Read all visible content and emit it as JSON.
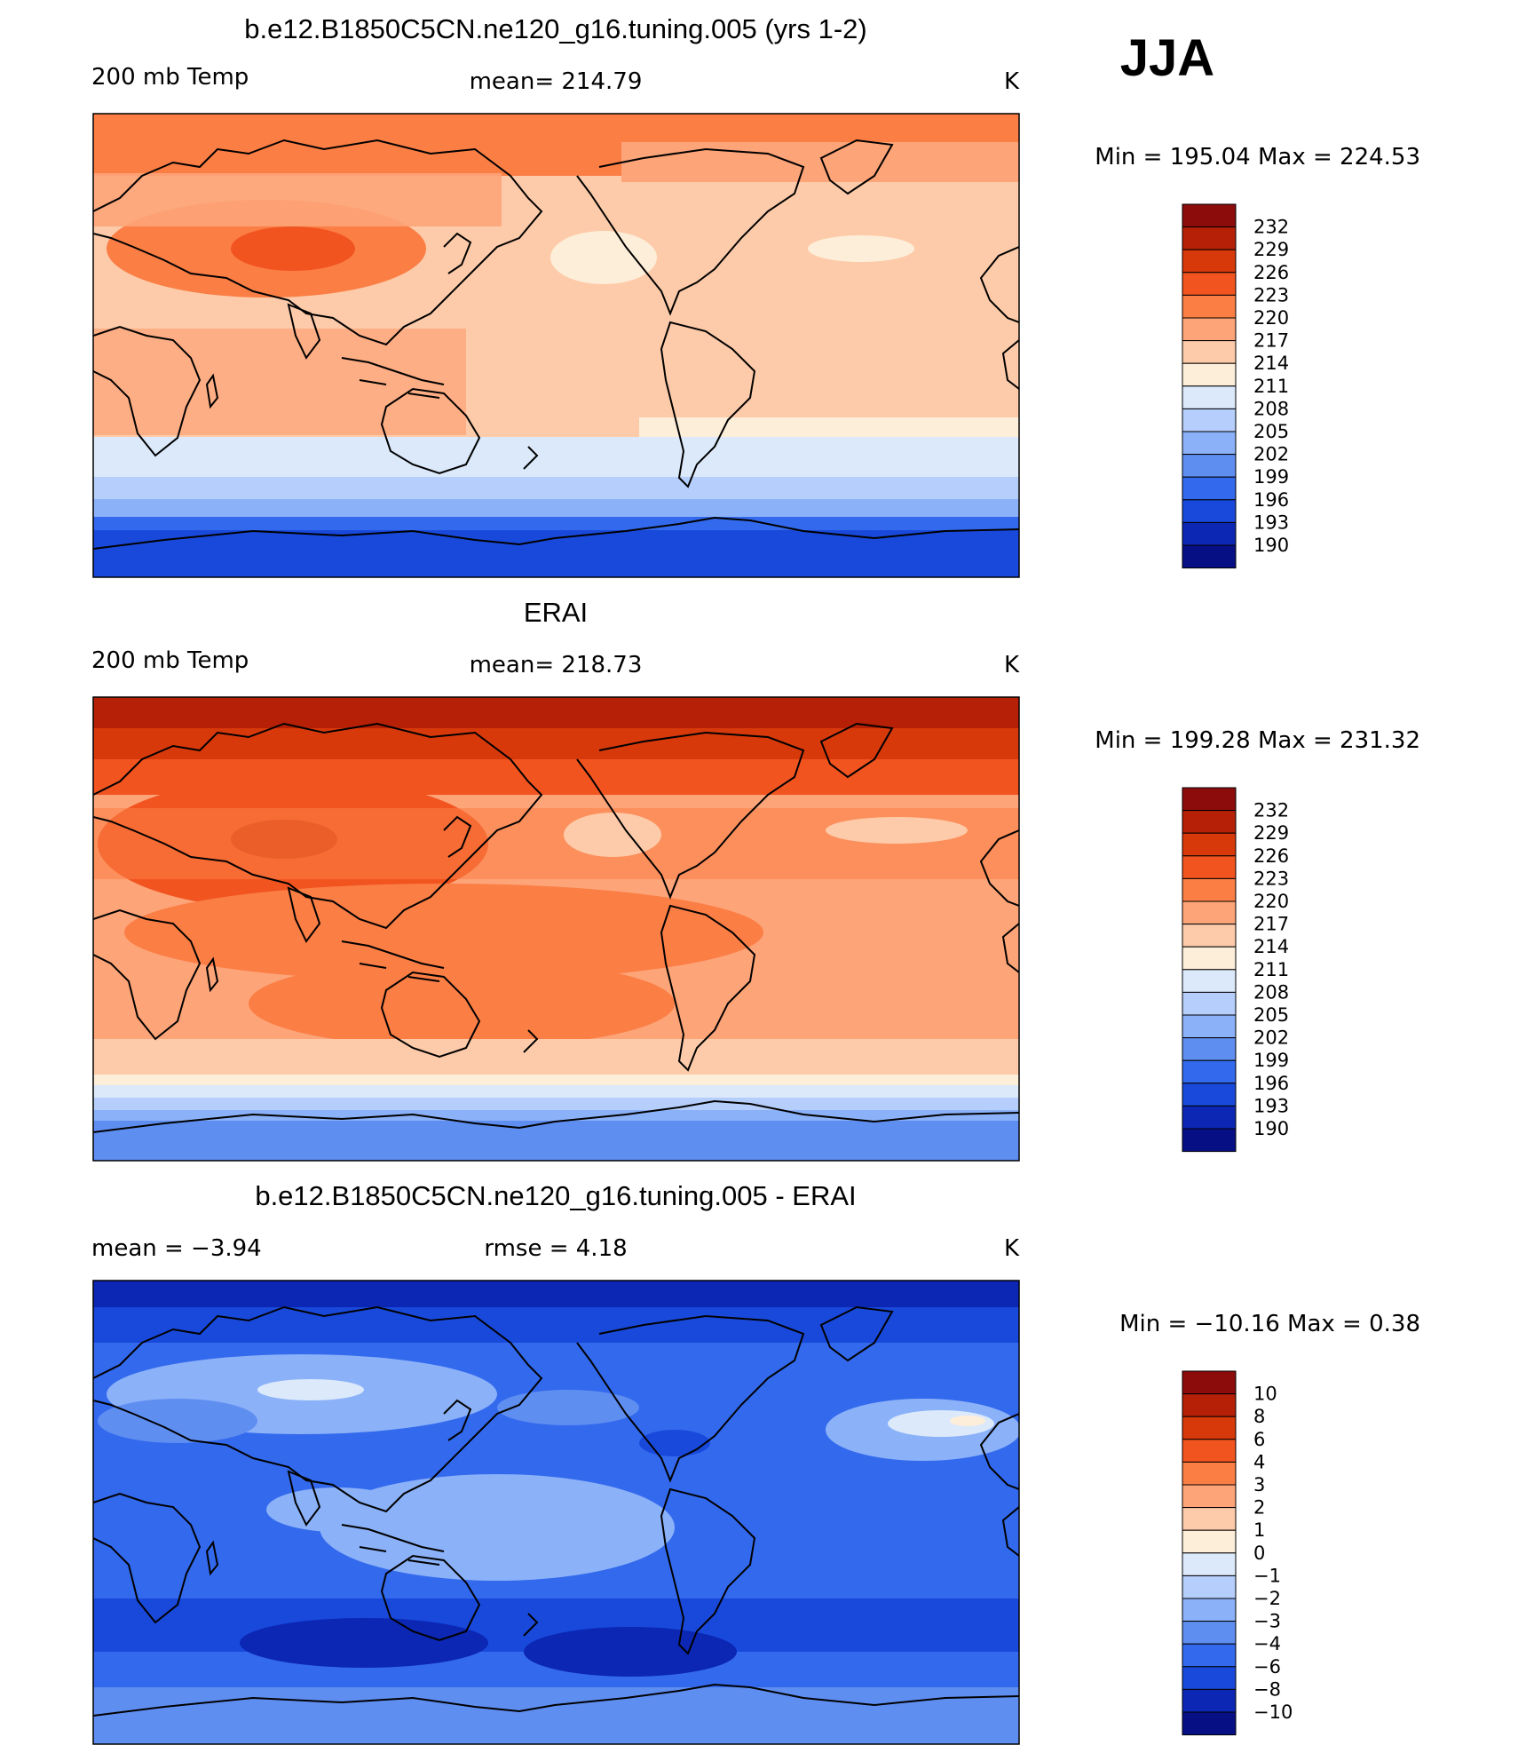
{
  "season": "JJA",
  "unit_glyph": "K",
  "panels": [
    {
      "title": "b.e12.B1850C5CN.ne120_g16.tuning.005 (yrs 1-2)",
      "left_label": "200 mb Temp",
      "center_label": "mean=  214.79",
      "unit": "K",
      "minmax": "Min  =  195.04  Max  =  224.53",
      "levels": [
        "232",
        "229",
        "226",
        "223",
        "220",
        "217",
        "214",
        "211",
        "208",
        "205",
        "202",
        "199",
        "196",
        "193",
        "190"
      ]
    },
    {
      "title": "ERAI",
      "left_label": "200 mb Temp",
      "center_label": "mean=  218.73",
      "unit": "K",
      "minmax": "Min  =  199.28  Max  =  231.32",
      "levels": [
        "232",
        "229",
        "226",
        "223",
        "220",
        "217",
        "214",
        "211",
        "208",
        "205",
        "202",
        "199",
        "196",
        "193",
        "190"
      ]
    },
    {
      "title": "b.e12.B1850C5CN.ne120_g16.tuning.005 - ERAI",
      "left_label": "mean  =    −3.94",
      "center_label": "rmse  =     4.18",
      "unit": "K",
      "minmax": "Min  =  −10.16  Max  =     0.38",
      "levels": [
        "10",
        "8",
        "6",
        "4",
        "3",
        "2",
        "1",
        "0",
        "−1",
        "−2",
        "−3",
        "−4",
        "−6",
        "−8",
        "−10"
      ]
    }
  ],
  "colors": {
    "abs_scale": [
      "#8c0c0c",
      "#b52006",
      "#d8390b",
      "#f25420",
      "#fb7e45",
      "#fda478",
      "#fdcba9",
      "#fdeed9",
      "#dbe9fb",
      "#b5cefb",
      "#8bb1f8",
      "#5f8ef1",
      "#3369ed",
      "#1949db",
      "#0b27b4",
      "#060f83"
    ],
    "diff_scale": [
      "#8c0c0c",
      "#b52006",
      "#d8390b",
      "#f25420",
      "#fb7e45",
      "#fda478",
      "#fdcba9",
      "#fdeed9",
      "#dbe9fb",
      "#b5cefb",
      "#8bb1f8",
      "#5f8ef1",
      "#3369ed",
      "#1949db",
      "#0b27b4",
      "#060f83"
    ]
  }
}
